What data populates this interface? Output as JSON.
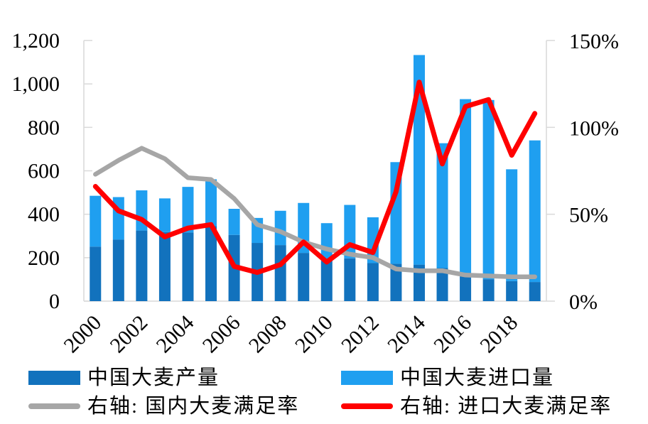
{
  "chart_data": {
    "type": "combo",
    "title": "",
    "categories": [
      2000,
      2001,
      2002,
      2003,
      2004,
      2005,
      2006,
      2007,
      2008,
      2009,
      2010,
      2011,
      2012,
      2013,
      2014,
      2015,
      2016,
      2017,
      2018,
      2019
    ],
    "series": [
      {
        "name": "中国大麦产量",
        "type": "bar",
        "stacked": true,
        "axis": "left",
        "color": "#1272BD",
        "values": [
          251,
          283,
          325,
          318,
          316,
          345,
          305,
          268,
          258,
          222,
          185,
          197,
          175,
          172,
          168,
          152,
          114,
          101,
          92,
          88
        ]
      },
      {
        "name": "中国大麦进口量",
        "type": "bar",
        "stacked": true,
        "axis": "left",
        "color": "#1F9FF0",
        "values": [
          234,
          196,
          185,
          155,
          210,
          216,
          120,
          115,
          158,
          230,
          174,
          246,
          211,
          468,
          965,
          575,
          816,
          825,
          515,
          652
        ]
      },
      {
        "name": "右轴: 国内大麦满足率",
        "type": "line",
        "axis": "right",
        "color": "#A6A6A6",
        "values": [
          73,
          81,
          88,
          82,
          71,
          70,
          59,
          44,
          40,
          34,
          30,
          27,
          25,
          18.5,
          17.5,
          17.5,
          15,
          14.5,
          14,
          14
        ]
      },
      {
        "name": "右轴: 进口大麦满足率",
        "type": "line",
        "axis": "right",
        "color": "#FF0000",
        "values": [
          66,
          52,
          47,
          37,
          42,
          44,
          20,
          16.5,
          21,
          34,
          22.5,
          32.5,
          28,
          63,
          126,
          79,
          112,
          116,
          84,
          108
        ]
      }
    ],
    "left_axis": {
      "min": 0,
      "max": 1200,
      "step": 200,
      "ticks": [
        "0",
        "200",
        "400",
        "600",
        "800",
        "1,000",
        "1,200"
      ]
    },
    "right_axis": {
      "min": 0,
      "max": 150,
      "step": 50,
      "ticks": [
        "0%",
        "50%",
        "100%",
        "150%"
      ]
    },
    "x_axis": {
      "label_interval": 2,
      "tick_labels": [
        "2000",
        "2002",
        "2004",
        "2006",
        "2008",
        "2010",
        "2012",
        "2014",
        "2016",
        "2018"
      ]
    },
    "grid": "off",
    "legend_position": "bottom",
    "axis_color": "#D9D9D9",
    "legend": {
      "production_label": "中国大麦产量",
      "imports_label": "中国大麦进口量",
      "domestic_rate_label": "右轴: 国内大麦满足率",
      "import_rate_label": "右轴: 进口大麦满足率"
    }
  }
}
